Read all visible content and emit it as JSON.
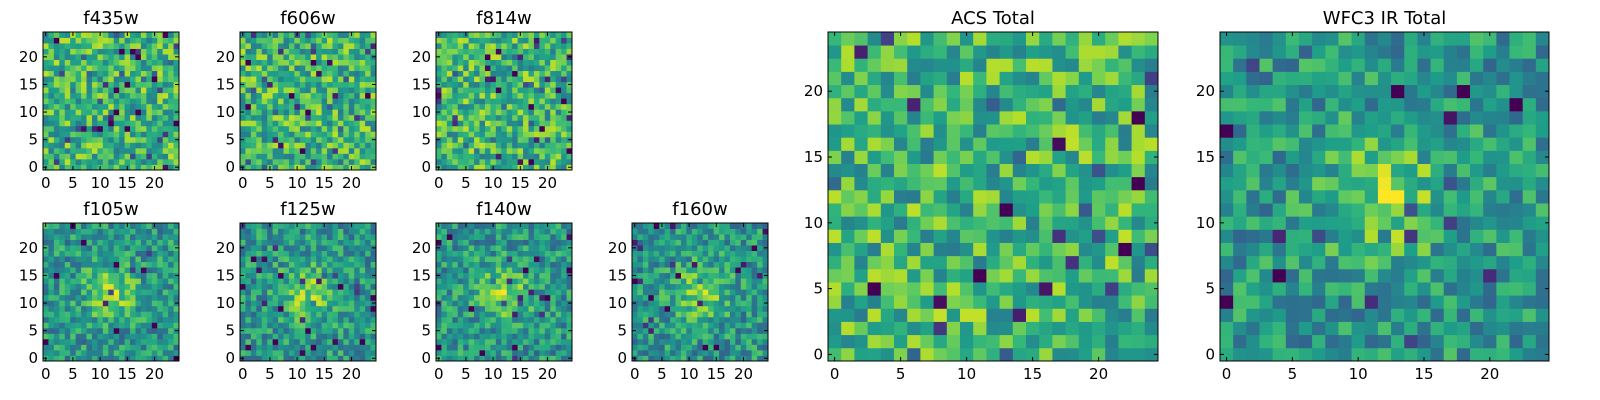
{
  "chart_data": [
    {
      "type": "heatmap",
      "title": "f435w",
      "grid_size": 25,
      "xticks": [
        "0",
        "5",
        "10",
        "15",
        "20"
      ],
      "yticks": [
        "0",
        "5",
        "10",
        "15",
        "20"
      ],
      "xlim": [
        -0.5,
        24.5
      ],
      "ylim": [
        -0.5,
        24.5
      ],
      "colormap": "viridis",
      "pattern": "noise",
      "seed": 11
    },
    {
      "type": "heatmap",
      "title": "f606w",
      "grid_size": 25,
      "xticks": [
        "0",
        "5",
        "10",
        "15",
        "20"
      ],
      "yticks": [
        "0",
        "5",
        "10",
        "15",
        "20"
      ],
      "xlim": [
        -0.5,
        24.5
      ],
      "ylim": [
        -0.5,
        24.5
      ],
      "colormap": "viridis",
      "pattern": "noise",
      "seed": 23
    },
    {
      "type": "heatmap",
      "title": "f814w",
      "grid_size": 25,
      "xticks": [
        "0",
        "5",
        "10",
        "15",
        "20"
      ],
      "yticks": [
        "0",
        "5",
        "10",
        "15",
        "20"
      ],
      "xlim": [
        -0.5,
        24.5
      ],
      "ylim": [
        -0.5,
        24.5
      ],
      "colormap": "viridis",
      "pattern": "noise",
      "seed": 37
    },
    {
      "type": "heatmap",
      "title": "f105w",
      "grid_size": 25,
      "xticks": [
        "0",
        "5",
        "10",
        "15",
        "20"
      ],
      "yticks": [
        "0",
        "5",
        "10",
        "15",
        "20"
      ],
      "xlim": [
        -0.5,
        24.5
      ],
      "ylim": [
        -0.5,
        24.5
      ],
      "colormap": "viridis",
      "pattern": "source",
      "seed": 41
    },
    {
      "type": "heatmap",
      "title": "f125w",
      "grid_size": 25,
      "xticks": [
        "0",
        "5",
        "10",
        "15",
        "20"
      ],
      "yticks": [
        "0",
        "5",
        "10",
        "15",
        "20"
      ],
      "xlim": [
        -0.5,
        24.5
      ],
      "ylim": [
        -0.5,
        24.5
      ],
      "colormap": "viridis",
      "pattern": "source",
      "seed": 53
    },
    {
      "type": "heatmap",
      "title": "f140w",
      "grid_size": 25,
      "xticks": [
        "0",
        "5",
        "10",
        "15",
        "20"
      ],
      "yticks": [
        "0",
        "5",
        "10",
        "15",
        "20"
      ],
      "xlim": [
        -0.5,
        24.5
      ],
      "ylim": [
        -0.5,
        24.5
      ],
      "colormap": "viridis",
      "pattern": "source",
      "seed": 67
    },
    {
      "type": "heatmap",
      "title": "f160w",
      "grid_size": 25,
      "xticks": [
        "0",
        "5",
        "10",
        "15",
        "20"
      ],
      "yticks": [
        "0",
        "5",
        "10",
        "15",
        "20"
      ],
      "xlim": [
        -0.5,
        24.5
      ],
      "ylim": [
        -0.5,
        24.5
      ],
      "colormap": "viridis",
      "pattern": "source",
      "seed": 79
    },
    {
      "type": "heatmap",
      "title": "ACS Total",
      "grid_size": 25,
      "xticks": [
        "0",
        "5",
        "10",
        "15",
        "20"
      ],
      "yticks": [
        "0",
        "5",
        "10",
        "15",
        "20"
      ],
      "xlim": [
        -0.5,
        24.5
      ],
      "ylim": [
        -0.5,
        24.5
      ],
      "colormap": "viridis",
      "pattern": "noise",
      "seed": 97
    },
    {
      "type": "heatmap",
      "title": "WFC3 IR Total",
      "grid_size": 25,
      "xticks": [
        "0",
        "5",
        "10",
        "15",
        "20"
      ],
      "yticks": [
        "0",
        "5",
        "10",
        "15",
        "20"
      ],
      "xlim": [
        -0.5,
        24.5
      ],
      "ylim": [
        -0.5,
        24.5
      ],
      "colormap": "viridis",
      "pattern": "source",
      "seed": 113
    }
  ]
}
